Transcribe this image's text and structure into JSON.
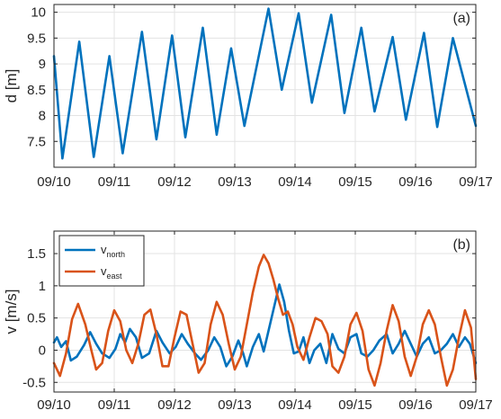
{
  "chart_data": [
    {
      "type": "line",
      "panel_label": "(a)",
      "ylabel": "d [m]",
      "xlim": [
        "09/10",
        "09/17"
      ],
      "ylim": [
        7.0,
        10.15
      ],
      "xticks": [
        "09/10",
        "09/11",
        "09/12",
        "09/13",
        "09/14",
        "09/15",
        "09/16",
        "09/17"
      ],
      "yticks": [
        7.5,
        8,
        8.5,
        9,
        9.5,
        10
      ],
      "ytick_labels": [
        "7.5",
        "8",
        "8.5",
        "9",
        "9.5",
        "10"
      ],
      "grid": true,
      "series": [
        {
          "color": "#0072BD",
          "points": [
            [
              0.0,
              9.15
            ],
            [
              0.14,
              7.17
            ],
            [
              0.42,
              9.43
            ],
            [
              0.66,
              7.2
            ],
            [
              0.92,
              9.15
            ],
            [
              1.14,
              7.27
            ],
            [
              1.46,
              9.62
            ],
            [
              1.7,
              7.54
            ],
            [
              1.96,
              9.55
            ],
            [
              2.18,
              7.58
            ],
            [
              2.47,
              9.7
            ],
            [
              2.7,
              7.63
            ],
            [
              2.94,
              9.3
            ],
            [
              3.16,
              7.8
            ],
            [
              3.56,
              10.07
            ],
            [
              3.78,
              8.5
            ],
            [
              4.06,
              9.98
            ],
            [
              4.28,
              8.25
            ],
            [
              4.6,
              9.95
            ],
            [
              4.82,
              8.05
            ],
            [
              5.1,
              9.7
            ],
            [
              5.32,
              8.08
            ],
            [
              5.62,
              9.52
            ],
            [
              5.84,
              7.92
            ],
            [
              6.14,
              9.6
            ],
            [
              6.36,
              7.78
            ],
            [
              6.62,
              9.5
            ],
            [
              7.0,
              7.8
            ]
          ]
        }
      ]
    },
    {
      "type": "line",
      "panel_label": "(b)",
      "ylabel": "v [m/s]",
      "xlim": [
        "09/10",
        "09/17"
      ],
      "ylim": [
        -0.65,
        1.85
      ],
      "xticks": [
        "09/10",
        "09/11",
        "09/12",
        "09/13",
        "09/14",
        "09/15",
        "09/16",
        "09/17"
      ],
      "yticks": [
        -0.5,
        0,
        0.5,
        1,
        1.5
      ],
      "ytick_labels": [
        "-0.5",
        "0",
        "0.5",
        "1",
        "1.5"
      ],
      "grid": true,
      "legend_position": "top-left",
      "series": [
        {
          "name": "v",
          "name_sub": "north",
          "color": "#0072BD",
          "points": [
            [
              0.0,
              0.12
            ],
            [
              0.05,
              0.2
            ],
            [
              0.12,
              0.05
            ],
            [
              0.2,
              0.14
            ],
            [
              0.28,
              -0.16
            ],
            [
              0.38,
              -0.1
            ],
            [
              0.5,
              0.08
            ],
            [
              0.6,
              0.28
            ],
            [
              0.7,
              0.1
            ],
            [
              0.8,
              -0.05
            ],
            [
              0.92,
              -0.12
            ],
            [
              1.02,
              0.02
            ],
            [
              1.1,
              0.25
            ],
            [
              1.18,
              0.12
            ],
            [
              1.26,
              0.33
            ],
            [
              1.36,
              0.2
            ],
            [
              1.46,
              -0.12
            ],
            [
              1.58,
              -0.05
            ],
            [
              1.7,
              0.3
            ],
            [
              1.8,
              0.12
            ],
            [
              1.92,
              -0.05
            ],
            [
              2.02,
              0.05
            ],
            [
              2.12,
              0.25
            ],
            [
              2.22,
              0.1
            ],
            [
              2.34,
              -0.05
            ],
            [
              2.44,
              -0.15
            ],
            [
              2.56,
              0.0
            ],
            [
              2.66,
              0.2
            ],
            [
              2.76,
              0.05
            ],
            [
              2.86,
              -0.25
            ],
            [
              2.96,
              -0.1
            ],
            [
              3.06,
              0.15
            ],
            [
              3.14,
              -0.05
            ],
            [
              3.2,
              -0.25
            ],
            [
              3.3,
              0.05
            ],
            [
              3.4,
              0.25
            ],
            [
              3.48,
              -0.02
            ],
            [
              3.56,
              0.3
            ],
            [
              3.66,
              0.7
            ],
            [
              3.74,
              1.02
            ],
            [
              3.82,
              0.75
            ],
            [
              3.9,
              0.3
            ],
            [
              3.98,
              -0.05
            ],
            [
              4.06,
              -0.02
            ],
            [
              4.14,
              0.2
            ],
            [
              4.24,
              -0.2
            ],
            [
              4.32,
              0.0
            ],
            [
              4.42,
              0.1
            ],
            [
              4.52,
              -0.2
            ],
            [
              4.62,
              0.25
            ],
            [
              4.72,
              0.02
            ],
            [
              4.82,
              -0.05
            ],
            [
              4.92,
              0.2
            ],
            [
              5.02,
              0.25
            ],
            [
              5.1,
              -0.05
            ],
            [
              5.2,
              -0.1
            ],
            [
              5.3,
              0.0
            ],
            [
              5.4,
              0.15
            ],
            [
              5.52,
              0.25
            ],
            [
              5.62,
              -0.05
            ],
            [
              5.72,
              0.1
            ],
            [
              5.82,
              0.3
            ],
            [
              5.92,
              0.1
            ],
            [
              6.02,
              -0.1
            ],
            [
              6.12,
              0.1
            ],
            [
              6.22,
              0.2
            ],
            [
              6.32,
              -0.05
            ],
            [
              6.42,
              0.0
            ],
            [
              6.52,
              0.1
            ],
            [
              6.62,
              0.25
            ],
            [
              6.72,
              0.05
            ],
            [
              6.82,
              0.2
            ],
            [
              6.9,
              0.1
            ],
            [
              7.0,
              -0.2
            ]
          ]
        },
        {
          "name": "v",
          "name_sub": "east",
          "color": "#D95319",
          "points": [
            [
              0.0,
              -0.2
            ],
            [
              0.1,
              -0.4
            ],
            [
              0.2,
              -0.05
            ],
            [
              0.3,
              0.48
            ],
            [
              0.4,
              0.72
            ],
            [
              0.52,
              0.4
            ],
            [
              0.62,
              0.0
            ],
            [
              0.7,
              -0.3
            ],
            [
              0.8,
              -0.2
            ],
            [
              0.9,
              0.3
            ],
            [
              1.0,
              0.62
            ],
            [
              1.1,
              0.45
            ],
            [
              1.2,
              0.0
            ],
            [
              1.3,
              -0.2
            ],
            [
              1.4,
              0.1
            ],
            [
              1.5,
              0.55
            ],
            [
              1.6,
              0.63
            ],
            [
              1.7,
              0.25
            ],
            [
              1.8,
              -0.25
            ],
            [
              1.9,
              -0.25
            ],
            [
              2.0,
              0.2
            ],
            [
              2.1,
              0.6
            ],
            [
              2.2,
              0.55
            ],
            [
              2.3,
              0.1
            ],
            [
              2.4,
              -0.35
            ],
            [
              2.5,
              -0.2
            ],
            [
              2.6,
              0.4
            ],
            [
              2.7,
              0.75
            ],
            [
              2.8,
              0.55
            ],
            [
              2.9,
              0.1
            ],
            [
              3.0,
              -0.3
            ],
            [
              3.1,
              -0.1
            ],
            [
              3.2,
              0.4
            ],
            [
              3.3,
              0.9
            ],
            [
              3.4,
              1.3
            ],
            [
              3.48,
              1.48
            ],
            [
              3.56,
              1.35
            ],
            [
              3.64,
              1.1
            ],
            [
              3.72,
              0.8
            ],
            [
              3.8,
              0.55
            ],
            [
              3.88,
              0.6
            ],
            [
              3.96,
              0.4
            ],
            [
              4.04,
              0.05
            ],
            [
              4.14,
              -0.15
            ],
            [
              4.24,
              0.2
            ],
            [
              4.34,
              0.5
            ],
            [
              4.44,
              0.45
            ],
            [
              4.54,
              0.25
            ],
            [
              4.62,
              -0.25
            ],
            [
              4.72,
              -0.35
            ],
            [
              4.82,
              -0.1
            ],
            [
              4.92,
              0.4
            ],
            [
              5.02,
              0.58
            ],
            [
              5.12,
              0.3
            ],
            [
              5.22,
              -0.3
            ],
            [
              5.32,
              -0.55
            ],
            [
              5.42,
              -0.2
            ],
            [
              5.52,
              0.3
            ],
            [
              5.62,
              0.7
            ],
            [
              5.72,
              0.45
            ],
            [
              5.82,
              -0.1
            ],
            [
              5.92,
              -0.4
            ],
            [
              6.02,
              -0.1
            ],
            [
              6.12,
              0.4
            ],
            [
              6.22,
              0.62
            ],
            [
              6.32,
              0.4
            ],
            [
              6.42,
              -0.1
            ],
            [
              6.52,
              -0.55
            ],
            [
              6.62,
              -0.3
            ],
            [
              6.72,
              0.2
            ],
            [
              6.82,
              0.62
            ],
            [
              6.92,
              0.35
            ],
            [
              7.0,
              -0.45
            ]
          ]
        }
      ]
    }
  ]
}
